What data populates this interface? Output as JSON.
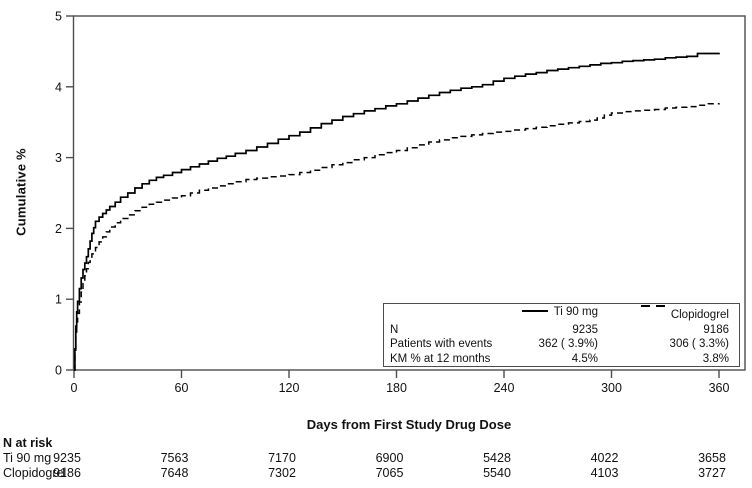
{
  "figure": {
    "y_axis_label": "Cumulative %",
    "x_axis_label": "Days from First Study Drug Dose"
  },
  "legend": {
    "rows": [
      {
        "label": "N",
        "ti90": "9235",
        "clopidogrel": "9186"
      },
      {
        "label": "Patients with events",
        "ti90": "362 ( 3.9%)",
        "clopidogrel": "306 ( 3.3%)"
      },
      {
        "label": "KM % at 12 months",
        "ti90": "4.5%",
        "clopidogrel": "3.8%"
      }
    ]
  },
  "n_at_risk": {
    "title": "N at risk",
    "rows": [
      {
        "label": "Ti 90 mg",
        "values": [
          "9235",
          "7563",
          "7170",
          "6900",
          "5428",
          "4022",
          "3658"
        ]
      },
      {
        "label": "Clopidogrel",
        "values": [
          "9186",
          "7648",
          "7302",
          "7065",
          "5540",
          "4103",
          "3727"
        ]
      }
    ]
  },
  "colors": {
    "curve": "#000000",
    "frame": "#4d4d4d",
    "text": "#111111"
  },
  "chart_data": {
    "type": "line",
    "interpolation": "step-after",
    "title": "",
    "xlabel": "Days from First Study Drug Dose",
    "ylabel": "Cumulative %",
    "xlim": [
      0,
      360
    ],
    "ylim": [
      0,
      5
    ],
    "x_ticks": [
      0,
      60,
      120,
      180,
      240,
      300,
      360
    ],
    "y_ticks": [
      0,
      1,
      2,
      3,
      4,
      5
    ],
    "grid": false,
    "legend_position": "inside bottom-right box",
    "series": [
      {
        "name": "Ti 90 mg",
        "style": "solid",
        "n": 9235,
        "patients_with_events": "362 ( 3.9%)",
        "km_pct_12_months": "4.5%",
        "points": [
          [
            0,
            0
          ],
          [
            0.5,
            0.3
          ],
          [
            1,
            0.62
          ],
          [
            1.5,
            0.82
          ],
          [
            2,
            0.97
          ],
          [
            3,
            1.15
          ],
          [
            4,
            1.3
          ],
          [
            5,
            1.42
          ],
          [
            6,
            1.51
          ],
          [
            7,
            1.6
          ],
          [
            8,
            1.71
          ],
          [
            9,
            1.82
          ],
          [
            10,
            1.93
          ],
          [
            11,
            2.01
          ],
          [
            12,
            2.1
          ],
          [
            14,
            2.16
          ],
          [
            16,
            2.21
          ],
          [
            18,
            2.26
          ],
          [
            20,
            2.31
          ],
          [
            23,
            2.37
          ],
          [
            26,
            2.44
          ],
          [
            30,
            2.5
          ],
          [
            34,
            2.57
          ],
          [
            38,
            2.63
          ],
          [
            42,
            2.68
          ],
          [
            46,
            2.72
          ],
          [
            50,
            2.75
          ],
          [
            55,
            2.79
          ],
          [
            60,
            2.83
          ],
          [
            65,
            2.87
          ],
          [
            70,
            2.91
          ],
          [
            75,
            2.95
          ],
          [
            80,
            2.99
          ],
          [
            85,
            3.02
          ],
          [
            90,
            3.06
          ],
          [
            96,
            3.1
          ],
          [
            102,
            3.15
          ],
          [
            108,
            3.2
          ],
          [
            114,
            3.26
          ],
          [
            120,
            3.31
          ],
          [
            126,
            3.36
          ],
          [
            132,
            3.42
          ],
          [
            138,
            3.48
          ],
          [
            144,
            3.53
          ],
          [
            150,
            3.58
          ],
          [
            156,
            3.62
          ],
          [
            162,
            3.66
          ],
          [
            168,
            3.69
          ],
          [
            174,
            3.73
          ],
          [
            180,
            3.76
          ],
          [
            186,
            3.8
          ],
          [
            192,
            3.84
          ],
          [
            198,
            3.88
          ],
          [
            204,
            3.92
          ],
          [
            210,
            3.95
          ],
          [
            216,
            3.98
          ],
          [
            222,
            4.0
          ],
          [
            228,
            4.03
          ],
          [
            234,
            4.08
          ],
          [
            240,
            4.12
          ],
          [
            246,
            4.15
          ],
          [
            252,
            4.18
          ],
          [
            258,
            4.2
          ],
          [
            264,
            4.23
          ],
          [
            270,
            4.25
          ],
          [
            276,
            4.27
          ],
          [
            282,
            4.29
          ],
          [
            288,
            4.31
          ],
          [
            294,
            4.33
          ],
          [
            300,
            4.34
          ],
          [
            306,
            4.36
          ],
          [
            312,
            4.37
          ],
          [
            318,
            4.38
          ],
          [
            324,
            4.39
          ],
          [
            330,
            4.41
          ],
          [
            336,
            4.42
          ],
          [
            342,
            4.43
          ],
          [
            348,
            4.47
          ],
          [
            360,
            4.48
          ]
        ]
      },
      {
        "name": "Clopidogrel",
        "style": "dashed",
        "n": 9186,
        "patients_with_events": "306 ( 3.3%)",
        "km_pct_12_months": "3.8%",
        "points": [
          [
            0,
            0
          ],
          [
            0.5,
            0.28
          ],
          [
            1,
            0.52
          ],
          [
            1.5,
            0.68
          ],
          [
            2,
            0.8
          ],
          [
            3,
            0.96
          ],
          [
            4,
            1.1
          ],
          [
            5,
            1.22
          ],
          [
            6,
            1.33
          ],
          [
            7,
            1.43
          ],
          [
            8,
            1.52
          ],
          [
            9,
            1.58
          ],
          [
            10,
            1.64
          ],
          [
            12,
            1.73
          ],
          [
            14,
            1.81
          ],
          [
            16,
            1.88
          ],
          [
            18,
            1.95
          ],
          [
            20,
            2.02
          ],
          [
            23,
            2.08
          ],
          [
            26,
            2.14
          ],
          [
            30,
            2.19
          ],
          [
            34,
            2.25
          ],
          [
            38,
            2.3
          ],
          [
            42,
            2.34
          ],
          [
            46,
            2.37
          ],
          [
            50,
            2.4
          ],
          [
            55,
            2.43
          ],
          [
            60,
            2.46
          ],
          [
            65,
            2.5
          ],
          [
            70,
            2.54
          ],
          [
            75,
            2.57
          ],
          [
            80,
            2.6
          ],
          [
            85,
            2.63
          ],
          [
            90,
            2.66
          ],
          [
            96,
            2.69
          ],
          [
            102,
            2.71
          ],
          [
            108,
            2.73
          ],
          [
            114,
            2.74
          ],
          [
            120,
            2.76
          ],
          [
            126,
            2.79
          ],
          [
            132,
            2.82
          ],
          [
            138,
            2.86
          ],
          [
            144,
            2.9
          ],
          [
            150,
            2.93
          ],
          [
            156,
            2.97
          ],
          [
            162,
            3.0
          ],
          [
            168,
            3.04
          ],
          [
            174,
            3.07
          ],
          [
            180,
            3.1
          ],
          [
            186,
            3.14
          ],
          [
            192,
            3.18
          ],
          [
            198,
            3.22
          ],
          [
            204,
            3.25
          ],
          [
            210,
            3.28
          ],
          [
            216,
            3.3
          ],
          [
            222,
            3.32
          ],
          [
            228,
            3.34
          ],
          [
            234,
            3.36
          ],
          [
            240,
            3.37
          ],
          [
            246,
            3.39
          ],
          [
            252,
            3.41
          ],
          [
            258,
            3.43
          ],
          [
            264,
            3.45
          ],
          [
            270,
            3.47
          ],
          [
            276,
            3.49
          ],
          [
            282,
            3.51
          ],
          [
            288,
            3.53
          ],
          [
            292,
            3.56
          ],
          [
            296,
            3.6
          ],
          [
            300,
            3.63
          ],
          [
            306,
            3.65
          ],
          [
            312,
            3.66
          ],
          [
            318,
            3.67
          ],
          [
            324,
            3.68
          ],
          [
            330,
            3.7
          ],
          [
            336,
            3.71
          ],
          [
            342,
            3.72
          ],
          [
            348,
            3.74
          ],
          [
            354,
            3.76
          ],
          [
            360,
            3.77
          ]
        ]
      }
    ]
  }
}
